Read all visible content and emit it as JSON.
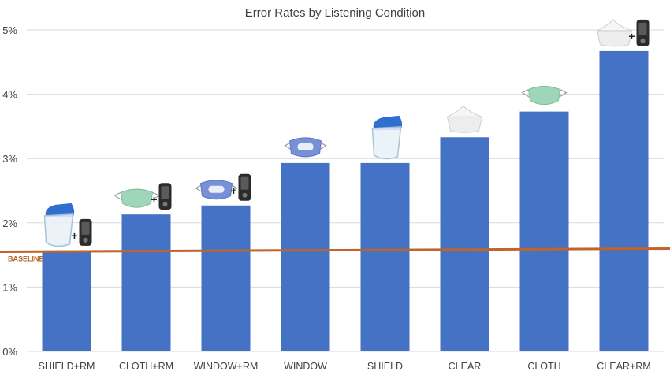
{
  "chart_data": {
    "type": "bar",
    "title": "Error Rates by Listening Condition",
    "categories": [
      "SHIELD+RM",
      "CLOTH+RM",
      "WINDOW+RM",
      "WINDOW",
      "SHIELD",
      "CLEAR",
      "CLOTH",
      "CLEAR+RM"
    ],
    "values": [
      1.57,
      2.13,
      2.27,
      2.93,
      2.93,
      3.33,
      3.73,
      4.67
    ],
    "unit": "%",
    "ylim": [
      0,
      5
    ],
    "yticks": [
      0,
      1,
      2,
      3,
      4,
      5
    ],
    "ytick_labels": [
      "0%",
      "1%",
      "2%",
      "3%",
      "4%",
      "5%"
    ],
    "grid": true,
    "bar_color": "#4472c4",
    "reference_line": {
      "label": "BASELINE",
      "value_start": 1.55,
      "value_end": 1.6,
      "color": "#c0642b"
    },
    "bar_icons": [
      {
        "mask": "shield-icon",
        "remote_mic": true
      },
      {
        "mask": "cloth-mask-icon",
        "remote_mic": true
      },
      {
        "mask": "window-mask-icon",
        "remote_mic": true
      },
      {
        "mask": "window-mask-icon",
        "remote_mic": false
      },
      {
        "mask": "shield-icon",
        "remote_mic": false
      },
      {
        "mask": "clear-mask-icon",
        "remote_mic": false
      },
      {
        "mask": "cloth-mask-icon",
        "remote_mic": false
      },
      {
        "mask": "clear-mask-icon",
        "remote_mic": true
      }
    ],
    "plus_sign": "+"
  }
}
